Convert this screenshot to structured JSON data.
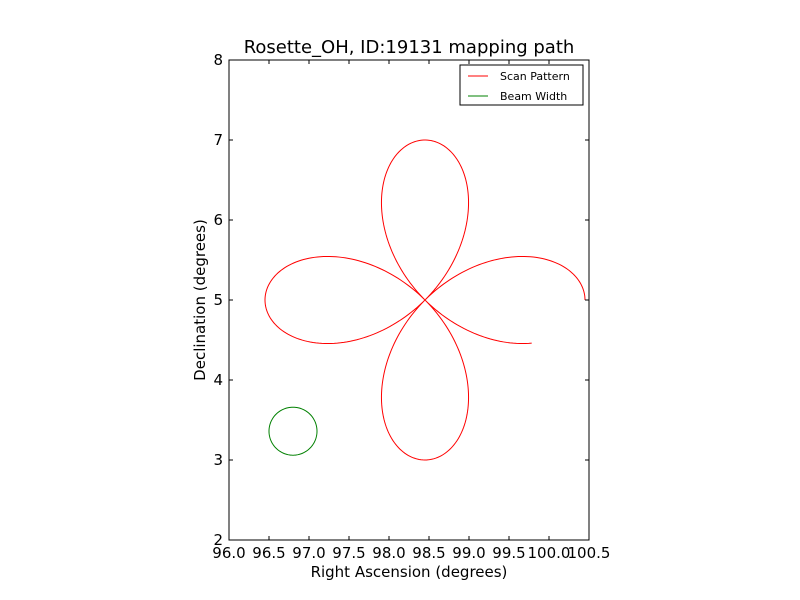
{
  "chart_data": {
    "type": "line",
    "title": "Rosette_OH, ID:19131 mapping path",
    "xlabel": "Right Ascension (degrees)",
    "ylabel": "Declination (degrees)",
    "xlim": [
      96.0,
      100.5
    ],
    "ylim": [
      2,
      8
    ],
    "x_ticks": [
      96.0,
      96.5,
      97.0,
      97.5,
      98.0,
      98.5,
      99.0,
      99.5,
      100.0,
      100.5
    ],
    "x_tick_labels": [
      "96.0",
      "96.5",
      "97.0",
      "97.5",
      "98.0",
      "98.5",
      "99.0",
      "99.5",
      "100.0",
      "100.5"
    ],
    "y_ticks": [
      2,
      3,
      4,
      5,
      6,
      7,
      8
    ],
    "y_tick_labels": [
      "2",
      "3",
      "4",
      "5",
      "6",
      "7",
      "8"
    ],
    "grid": false,
    "legend_position": "top-right",
    "series": [
      {
        "name": "Scan Pattern",
        "color": "#ff0000",
        "kind": "rose",
        "center": [
          98.45,
          5.0
        ],
        "radius": 2.0,
        "start_angle_deg": 0,
        "end_angle_deg": 338
      },
      {
        "name": "Beam Width",
        "color": "#008000",
        "kind": "circle",
        "center": [
          96.8,
          3.36
        ],
        "radius": 0.3
      }
    ]
  }
}
